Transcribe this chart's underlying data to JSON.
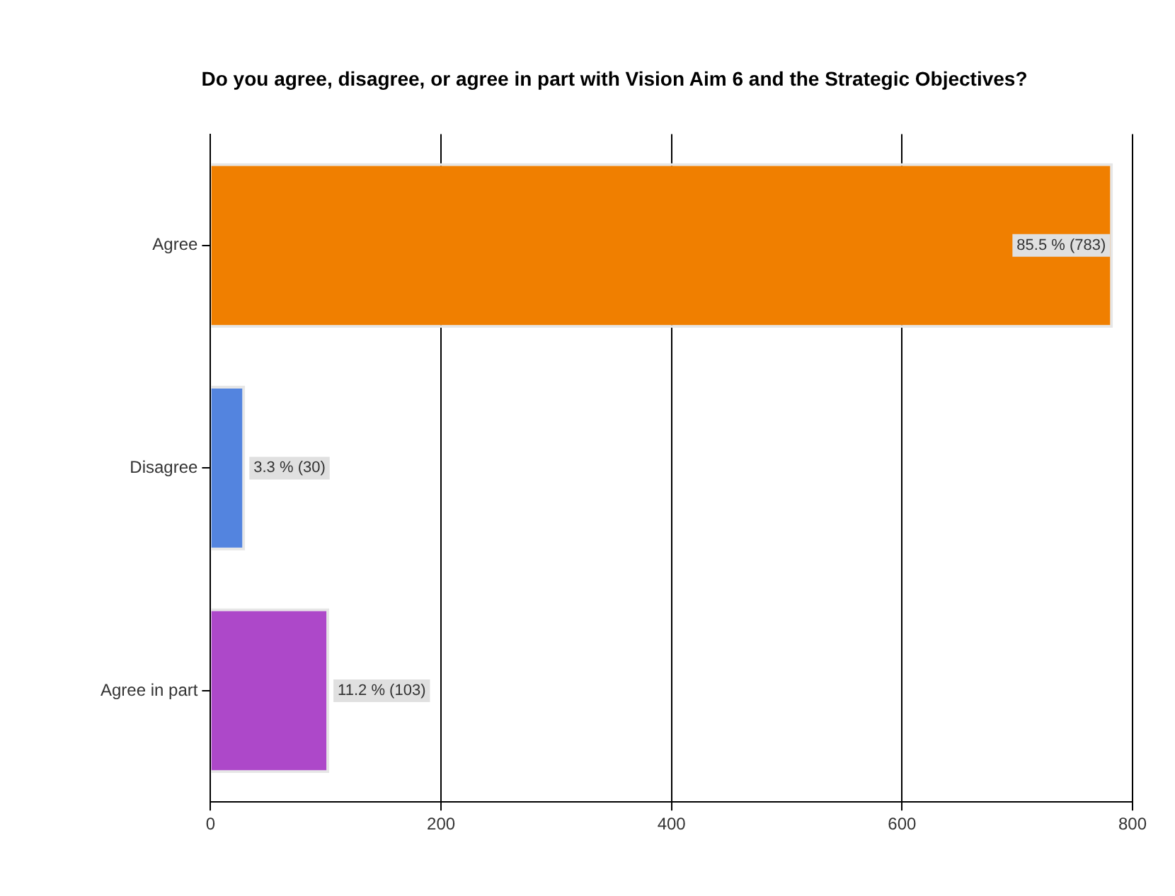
{
  "chart_data": {
    "type": "bar",
    "orientation": "horizontal",
    "title": "Do you agree, disagree, or agree in part with Vision Aim 6 and the Strategic Objectives?",
    "categories": [
      "Agree",
      "Disagree",
      "Agree in part"
    ],
    "values": [
      783,
      30,
      103
    ],
    "colors": [
      "#f07f00",
      "#5384df",
      "#ad48c9"
    ],
    "value_labels": [
      "85.5 % (783)",
      "3.3 % (30)",
      "11.2 % (103)"
    ],
    "xlim": [
      0,
      800
    ],
    "xticks": [
      0,
      200,
      400,
      600,
      800
    ],
    "grid": "x",
    "legend": false
  }
}
